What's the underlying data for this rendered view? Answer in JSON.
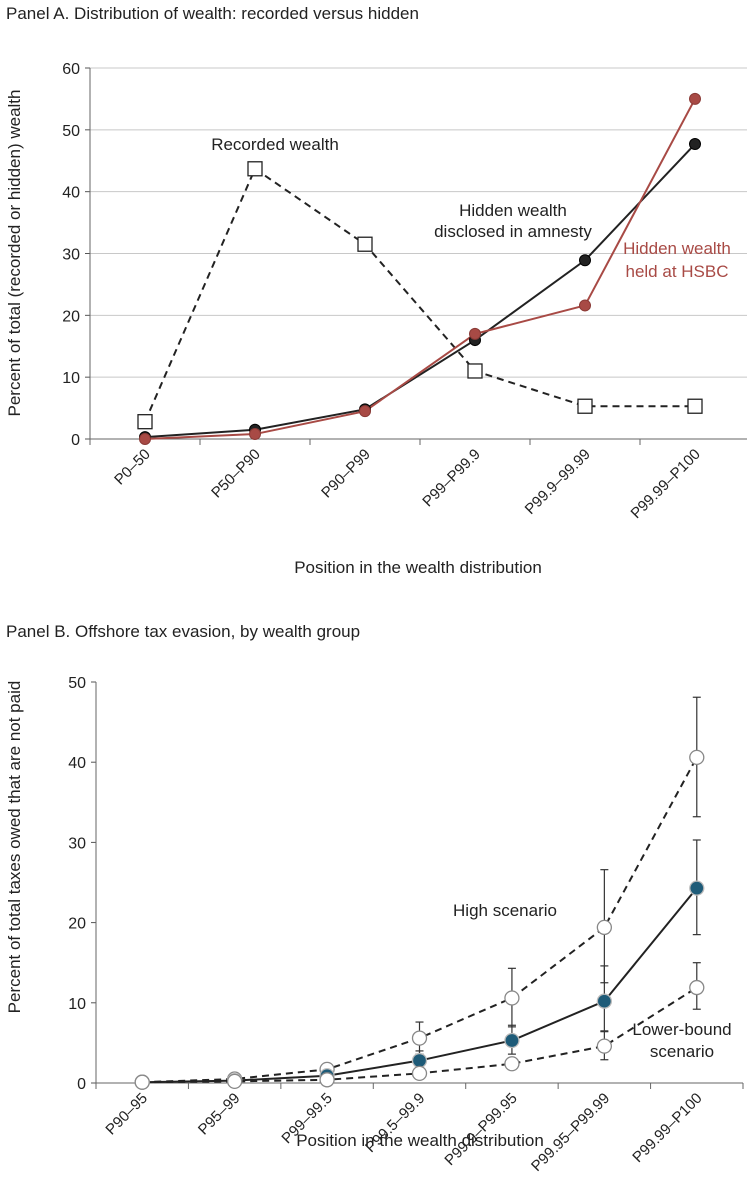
{
  "chart_data": [
    {
      "type": "line",
      "title": "Panel A. Distribution of wealth: recorded versus hidden",
      "xlabel": "Position in the wealth distribution",
      "ylabel": "Percent of total (recorded or hidden) wealth",
      "ylim": [
        0,
        60
      ],
      "yticks": [
        "0",
        "10",
        "20",
        "30",
        "40",
        "50",
        "60"
      ],
      "grid": true,
      "categories": [
        "P0–50",
        "P50–P90",
        "P90–P99",
        "P99–P99.9",
        "P99.9–99.99",
        "P99.99–P100"
      ],
      "series": [
        {
          "name": "Recorded wealth",
          "values": [
            2.8,
            43.7,
            31.5,
            11.0,
            5.3,
            5.3
          ],
          "color": "#222222",
          "dash": true,
          "marker": "square"
        },
        {
          "name": "Hidden wealth disclosed in amnesty",
          "values": [
            0.3,
            1.5,
            4.8,
            16.0,
            28.9,
            47.7
          ],
          "color": "#222222",
          "dash": false,
          "marker": "circle"
        },
        {
          "name": "Hidden wealth held at HSBC",
          "values": [
            0.0,
            0.8,
            4.5,
            17.0,
            21.6,
            55.0
          ],
          "color": "#a84a45",
          "dash": false,
          "marker": "circle"
        }
      ],
      "annotations": {
        "recorded": "Recorded wealth",
        "hidden_line1": "Hidden wealth",
        "hidden_line2": "disclosed in amnesty",
        "hsbc_line1": "Hidden wealth",
        "hsbc_line2": "held at HSBC"
      }
    },
    {
      "type": "line",
      "title": "Panel B. Offshore tax evasion, by wealth group",
      "xlabel": "Position in the wealth distribution",
      "ylabel": "Percent of total taxes owed that are not paid",
      "ylim": [
        0,
        50
      ],
      "yticks": [
        "0",
        "10",
        "20",
        "30",
        "40",
        "50"
      ],
      "grid": false,
      "categories": [
        "P90–95",
        "P95–99",
        "P99–99.5",
        "P99.5–99.9",
        "P99.9–P99.95",
        "P99.95–P99.99",
        "P99.99–P100"
      ],
      "series": [
        {
          "name": "High scenario",
          "values": [
            0.1,
            0.5,
            1.7,
            5.6,
            10.6,
            19.4,
            40.6
          ],
          "error_low": [
            null,
            null,
            null,
            3.6,
            7.0,
            12.5,
            33.2
          ],
          "error_high": [
            null,
            null,
            null,
            7.6,
            14.3,
            26.6,
            48.1
          ],
          "color": "#222222",
          "dash": true,
          "marker": "open-circle"
        },
        {
          "name": "",
          "values": [
            0.1,
            0.3,
            0.9,
            2.8,
            5.3,
            10.2,
            24.3
          ],
          "error_low": [
            null,
            null,
            null,
            1.6,
            3.6,
            6.5,
            18.5
          ],
          "error_high": [
            null,
            null,
            null,
            4.0,
            7.2,
            14.6,
            30.3
          ],
          "color": "#222222",
          "dash": false,
          "marker": "blue-circle"
        },
        {
          "name": "Lower-bound scenario",
          "values": [
            0.1,
            0.2,
            0.4,
            1.2,
            2.4,
            4.6,
            11.9
          ],
          "error_low": [
            null,
            null,
            null,
            null,
            null,
            2.9,
            9.2
          ],
          "error_high": [
            null,
            null,
            null,
            null,
            null,
            6.4,
            15.0
          ],
          "color": "#222222",
          "dash": true,
          "marker": "open-circle"
        }
      ],
      "annotations": {
        "high": "High scenario",
        "low_line1": "Lower-bound",
        "low_line2": "scenario"
      }
    }
  ]
}
